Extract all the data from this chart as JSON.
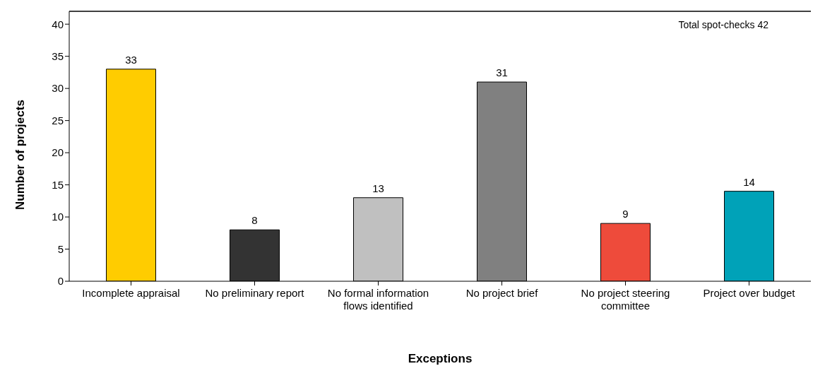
{
  "chart_data": {
    "type": "bar",
    "xlabel": "Exceptions",
    "ylabel": "Number of projects",
    "categories": [
      "Incomplete appraisal",
      "No preliminary report",
      "No formal information flows identified",
      "No project brief",
      "No project steering committee",
      "Project over budget"
    ],
    "values": [
      33,
      8,
      13,
      31,
      9,
      14
    ],
    "colors": [
      "#ffcc00",
      "#333333",
      "#c0c0c0",
      "#808080",
      "#ee4b3b",
      "#00a2b8"
    ],
    "ylim": [
      0,
      42
    ],
    "yticks": [
      0,
      5,
      10,
      15,
      20,
      25,
      30,
      35,
      40
    ],
    "ref_lines": [
      {
        "axis": "y",
        "value": 42,
        "label": "Total spot-checks 42",
        "color": "#000000"
      }
    ],
    "data_labels": true,
    "grid": false,
    "legend": false
  }
}
